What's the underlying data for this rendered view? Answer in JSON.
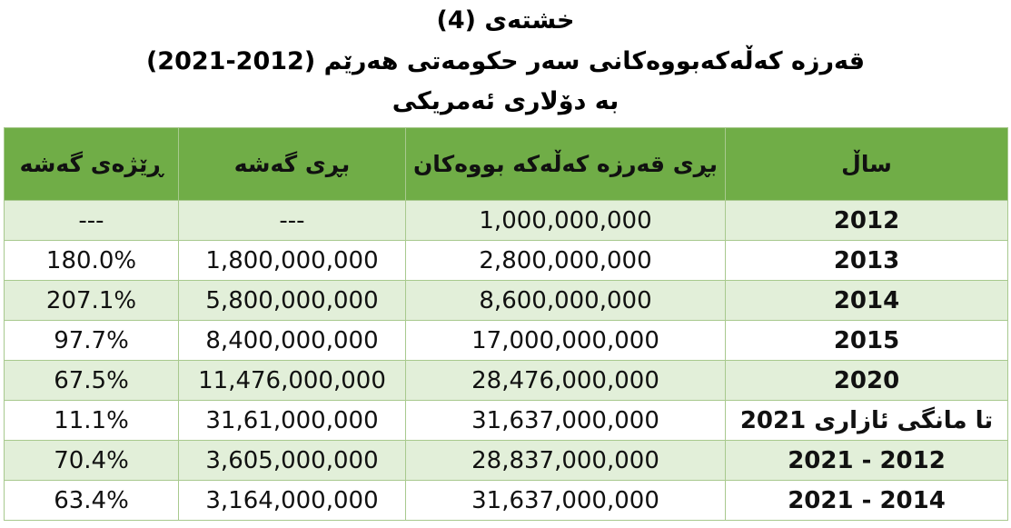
{
  "header": {
    "title": "خشتەی (4)",
    "subtitle": "قەرزە کەڵەکەبووەکانی سەر حکومەتی هەرێم (2012-2021)",
    "unit": "بە دۆلاری ئەمریکی"
  },
  "table": {
    "columns": [
      "ساڵ",
      "بڕی قەرزە کەڵەکە بووەکان",
      "بڕی گەشە",
      "ڕێژەی گەشە"
    ],
    "rows": [
      [
        "2012",
        "1,000,000,000",
        "---",
        "---"
      ],
      [
        "2013",
        "2,800,000,000",
        "1,800,000,000",
        "180.0%"
      ],
      [
        "2014",
        "8,600,000,000",
        "5,800,000,000",
        "207.1%"
      ],
      [
        "2015",
        "17,000,000,000",
        "8,400,000,000",
        "97.7%"
      ],
      [
        "2020",
        "28,476,000,000",
        "11,476,000,000",
        "67.5%"
      ],
      [
        "تا مانگی ئازاری 2021",
        "31,637,000,000",
        "31,61,000,000",
        "11.1%"
      ],
      [
        "2021 - 2012",
        "28,837,000,000",
        "3,605,000,000",
        "70.4%"
      ],
      [
        "2021 - 2014",
        "31,637,000,000",
        "3,164,000,000",
        "63.4%"
      ]
    ]
  }
}
